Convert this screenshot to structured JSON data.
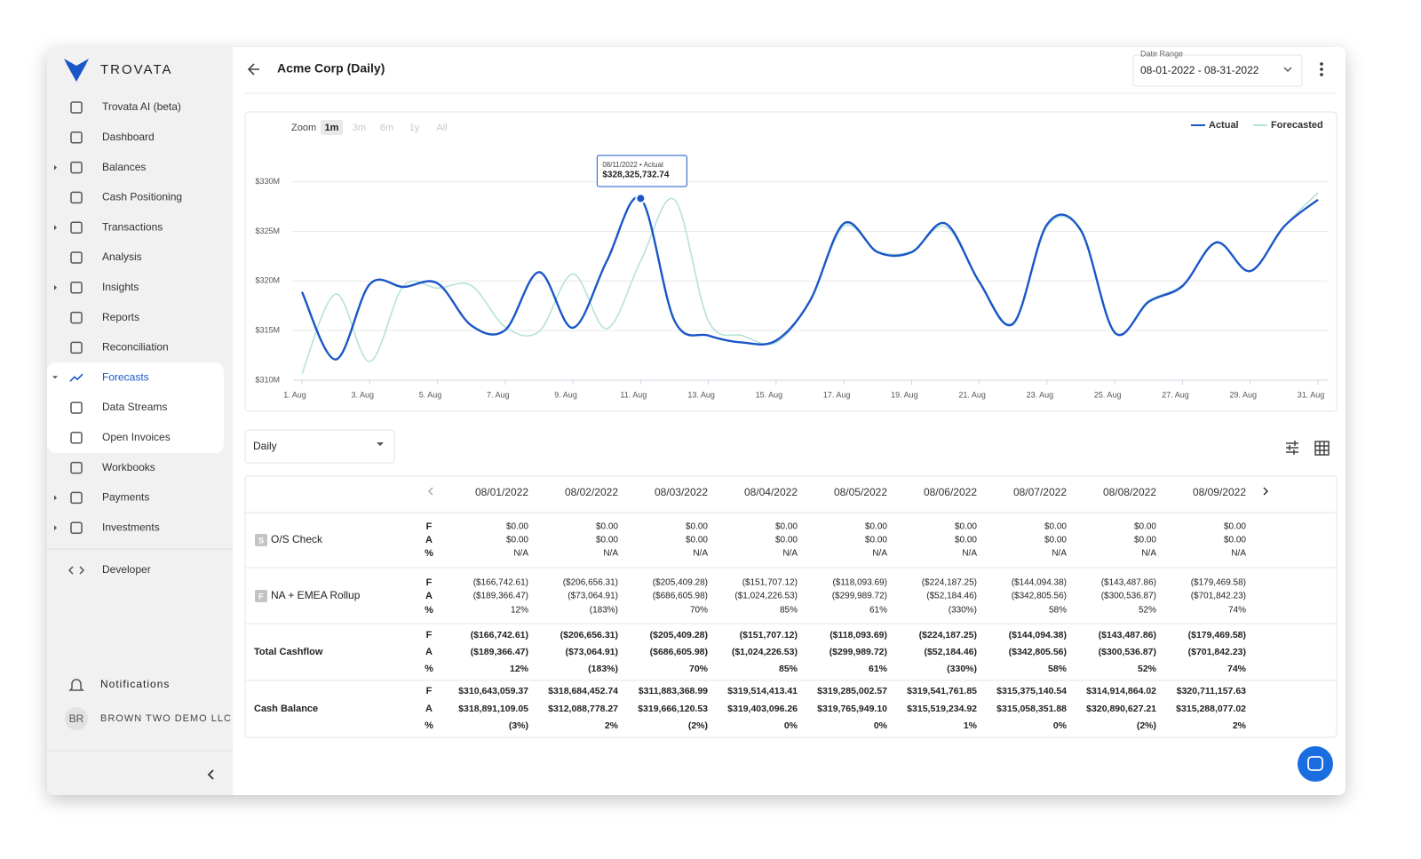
{
  "sidebar": {
    "brand": "TROVATA",
    "nav": [
      "Trovata AI (beta)",
      "Dashboard",
      "Balances",
      "Cash Positioning",
      "Transactions",
      "Analysis",
      "Insights",
      "Reports",
      "Reconciliation",
      "Forecasts",
      "Data Streams",
      "Open Invoices",
      "Workbooks",
      "Payments",
      "Investments",
      "Developer"
    ],
    "notifications": "Notifications",
    "user_initials": "BR",
    "user_name": "BROWN TWO DEMO LLC"
  },
  "header": {
    "title": "Acme Corp (Daily)",
    "date_range_label": "Date Range",
    "date_range": "08-01-2022 - 08-31-2022"
  },
  "chart_data": {
    "type": "line",
    "zoom_label": "Zoom",
    "zoom_options": [
      "1m",
      "3m",
      "6m",
      "1y",
      "All"
    ],
    "categories": [
      "1. Aug",
      null,
      "3. Aug",
      null,
      "5. Aug",
      null,
      "7. Aug",
      null,
      "9. Aug",
      null,
      "11. Aug",
      null,
      "13. Aug",
      null,
      "15. Aug",
      null,
      "17. Aug",
      null,
      "19. Aug",
      null,
      "21. Aug",
      null,
      "23. Aug",
      null,
      "25. Aug",
      null,
      "27. Aug",
      null,
      "29. Aug",
      null,
      "31. Aug"
    ],
    "series": [
      {
        "name": "Actual",
        "color": "#1a56c8",
        "values": [
          318891109.05,
          312088778.27,
          319666120.53,
          319403096.26,
          319765949.1,
          315519234.92,
          315058351.88,
          320890627.21,
          315288077.02,
          322000000,
          328325732.74,
          316000000,
          314500000,
          313800000,
          314000000,
          318000000,
          325800000,
          322900000,
          322900000,
          325800000,
          319900000,
          315700000,
          325700000,
          325100000,
          314800000,
          317900000,
          319500000,
          323900000,
          321000000,
          325500000,
          328200000
        ],
        "value_labels": [
          null,
          null,
          null,
          null,
          null,
          null,
          null,
          null,
          null,
          null,
          "$328,325,732.74",
          null,
          null,
          null,
          null,
          null,
          null,
          null,
          null,
          null,
          null,
          null,
          null,
          null,
          null,
          null,
          null,
          null,
          null,
          null,
          null
        ]
      },
      {
        "name": "Forecasted",
        "color": "#b5e2da",
        "values": [
          310643059.37,
          318684452.74,
          311883368.99,
          319514413.41,
          319285002.57,
          319541761.85,
          315375140.54,
          314914864.02,
          320711157.63,
          315200000,
          322000000,
          328200000,
          316000000,
          314500000,
          313800000,
          318000000,
          325500000,
          323000000,
          323000000,
          325500000,
          320000000,
          315800000,
          325500000,
          325000000,
          314800000,
          318000000,
          319600000,
          323800000,
          321000000,
          325500000,
          328900000
        ]
      }
    ],
    "tooltip_title": "08/11/2022 • Actual",
    "ylim": [
      310000000,
      334000000
    ],
    "yticks": [
      {
        "value": 310000000,
        "label": "$310M"
      },
      {
        "value": 315000000,
        "label": "$315M"
      },
      {
        "value": 320000000,
        "label": "$320M"
      },
      {
        "value": 325000000,
        "label": "$325M"
      },
      {
        "value": 330000000,
        "label": "$330M"
      }
    ],
    "grid": true,
    "legend": "top-right"
  },
  "controls": {
    "period": "Daily"
  },
  "table": {
    "columns": [
      "08/01/2022",
      "08/02/2022",
      "08/03/2022",
      "08/04/2022",
      "08/05/2022",
      "08/06/2022",
      "08/07/2022",
      "08/08/2022",
      "08/09/2022"
    ],
    "row_labels": [
      "F",
      "A",
      "%"
    ],
    "rows": [
      {
        "badge": "S",
        "label": "O/S Check",
        "cells": [
          [
            "$0.00",
            "$0.00",
            "$0.00",
            "$0.00",
            "$0.00",
            "$0.00",
            "$0.00",
            "$0.00",
            "$0.00"
          ],
          [
            "$0.00",
            "$0.00",
            "$0.00",
            "$0.00",
            "$0.00",
            "$0.00",
            "$0.00",
            "$0.00",
            "$0.00"
          ],
          [
            "N/A",
            "N/A",
            "N/A",
            "N/A",
            "N/A",
            "N/A",
            "N/A",
            "N/A",
            "N/A"
          ]
        ]
      },
      {
        "badge": "F",
        "label": "NA + EMEA Rollup",
        "cells": [
          [
            "($166,742.61)",
            "($206,656.31)",
            "($205,409.28)",
            "($151,707.12)",
            "($118,093.69)",
            "($224,187.25)",
            "($144,094.38)",
            "($143,487.86)",
            "($179,469.58)"
          ],
          [
            "($189,366.47)",
            "($73,064.91)",
            "($686,605.98)",
            "($1,024,226.53)",
            "($299,989.72)",
            "($52,184.46)",
            "($342,805.56)",
            "($300,536.87)",
            "($701,842.23)"
          ],
          [
            "12%",
            "(183%)",
            "70%",
            "85%",
            "61%",
            "(330%)",
            "58%",
            "52%",
            "74%"
          ]
        ]
      },
      {
        "label": "Total Cashflow",
        "cells": [
          [
            "($166,742.61)",
            "($206,656.31)",
            "($205,409.28)",
            "($151,707.12)",
            "($118,093.69)",
            "($224,187.25)",
            "($144,094.38)",
            "($143,487.86)",
            "($179,469.58)"
          ],
          [
            "($189,366.47)",
            "($73,064.91)",
            "($686,605.98)",
            "($1,024,226.53)",
            "($299,989.72)",
            "($52,184.46)",
            "($342,805.56)",
            "($300,536.87)",
            "($701,842.23)"
          ],
          [
            "12%",
            "(183%)",
            "70%",
            "85%",
            "61%",
            "(330%)",
            "58%",
            "52%",
            "74%"
          ]
        ]
      },
      {
        "label": "Cash Balance",
        "cells": [
          [
            "$310,643,059.37",
            "$318,684,452.74",
            "$311,883,368.99",
            "$319,514,413.41",
            "$319,285,002.57",
            "$319,541,761.85",
            "$315,375,140.54",
            "$314,914,864.02",
            "$320,711,157.63"
          ],
          [
            "$318,891,109.05",
            "$312,088,778.27",
            "$319,666,120.53",
            "$319,403,096.26",
            "$319,765,949.10",
            "$315,519,234.92",
            "$315,058,351.88",
            "$320,890,627.21",
            "$315,288,077.02"
          ],
          [
            "(3%)",
            "2%",
            "(2%)",
            "0%",
            "0%",
            "1%",
            "0%",
            "(2%)",
            "2%"
          ]
        ]
      }
    ]
  }
}
